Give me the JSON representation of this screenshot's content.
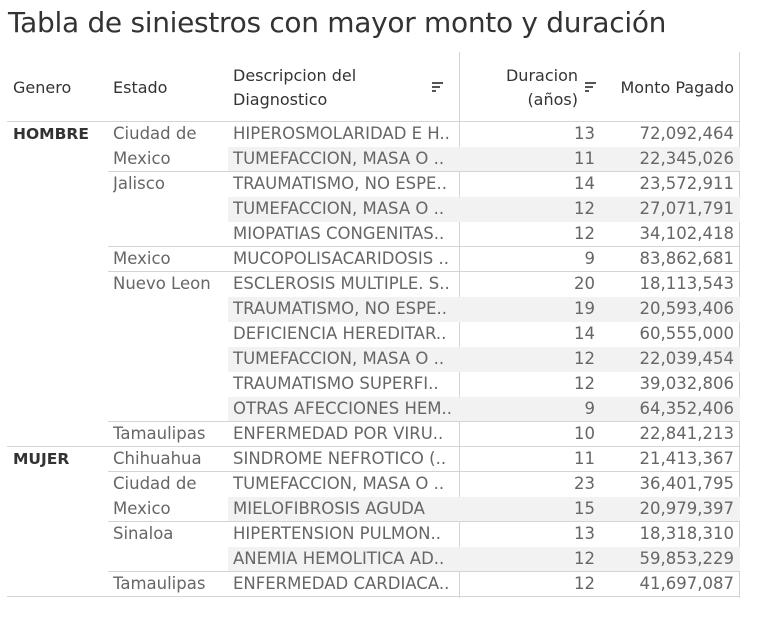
{
  "title": "Tabla de siniestros con mayor monto y duración",
  "headers": {
    "genero": "Genero",
    "estado": "Estado",
    "descripcion_line1": "Descripcion del",
    "descripcion_line2": "Diagnostico",
    "duracion_line1": "Duracion",
    "duracion_line2": "(años)",
    "monto": "Monto Pagado"
  },
  "icons": {
    "sort": "sort-descending-icon"
  },
  "colors": {
    "band": "#f2f2f2",
    "text": "#666666",
    "header": "#333333",
    "rule": "#d4d4d4"
  },
  "rows": [
    {
      "genero": "HOMBRE",
      "estado": "Ciudad de",
      "descripcion": "HIPEROSMOLARIDAD E H..",
      "duracion": "13",
      "monto": "72,092,464"
    },
    {
      "genero": "",
      "estado": "Mexico",
      "descripcion": "TUMEFACCION, MASA O ..",
      "duracion": "11",
      "monto": "22,345,026"
    },
    {
      "genero": "",
      "estado": "Jalisco",
      "descripcion": "TRAUMATISMO, NO ESPE..",
      "duracion": "14",
      "monto": "23,572,911"
    },
    {
      "genero": "",
      "estado": "",
      "descripcion": "TUMEFACCION, MASA O ..",
      "duracion": "12",
      "monto": "27,071,791"
    },
    {
      "genero": "",
      "estado": "",
      "descripcion": "MIOPATIAS CONGENITAS..",
      "duracion": "12",
      "monto": "34,102,418"
    },
    {
      "genero": "",
      "estado": "Mexico",
      "descripcion": "MUCOPOLISACARIDOSIS ..",
      "duracion": "9",
      "monto": "83,862,681"
    },
    {
      "genero": "",
      "estado": "Nuevo Leon",
      "descripcion": "ESCLEROSIS MULTIPLE. S..",
      "duracion": "20",
      "monto": "18,113,543"
    },
    {
      "genero": "",
      "estado": "",
      "descripcion": "TRAUMATISMO, NO ESPE..",
      "duracion": "19",
      "monto": "20,593,406"
    },
    {
      "genero": "",
      "estado": "",
      "descripcion": "DEFICIENCIA HEREDITAR..",
      "duracion": "14",
      "monto": "60,555,000"
    },
    {
      "genero": "",
      "estado": "",
      "descripcion": "TUMEFACCION, MASA O ..",
      "duracion": "12",
      "monto": "22,039,454"
    },
    {
      "genero": "",
      "estado": "",
      "descripcion": "TRAUMATISMO SUPERFI..",
      "duracion": "12",
      "monto": "39,032,806"
    },
    {
      "genero": "",
      "estado": "",
      "descripcion": "OTRAS AFECCIONES HEM..",
      "duracion": "9",
      "monto": "64,352,406"
    },
    {
      "genero": "",
      "estado": "Tamaulipas",
      "descripcion": "ENFERMEDAD POR VIRU..",
      "duracion": "10",
      "monto": "22,841,213"
    },
    {
      "genero": "MUJER",
      "estado": "Chihuahua",
      "descripcion": "SINDROME NEFROTICO (..",
      "duracion": "11",
      "monto": "21,413,367"
    },
    {
      "genero": "",
      "estado": "Ciudad de",
      "descripcion": "TUMEFACCION, MASA O ..",
      "duracion": "23",
      "monto": "36,401,795"
    },
    {
      "genero": "",
      "estado": "Mexico",
      "descripcion": "MIELOFIBROSIS AGUDA",
      "duracion": "15",
      "monto": "20,979,397"
    },
    {
      "genero": "",
      "estado": "Sinaloa",
      "descripcion": "HIPERTENSION PULMON..",
      "duracion": "13",
      "monto": "18,318,310"
    },
    {
      "genero": "",
      "estado": "",
      "descripcion": "ANEMIA HEMOLITICA AD..",
      "duracion": "12",
      "monto": "59,853,229"
    },
    {
      "genero": "",
      "estado": "Tamaulipas",
      "descripcion": "ENFERMEDAD CARDIACA..",
      "duracion": "12",
      "monto": "41,697,087"
    }
  ]
}
